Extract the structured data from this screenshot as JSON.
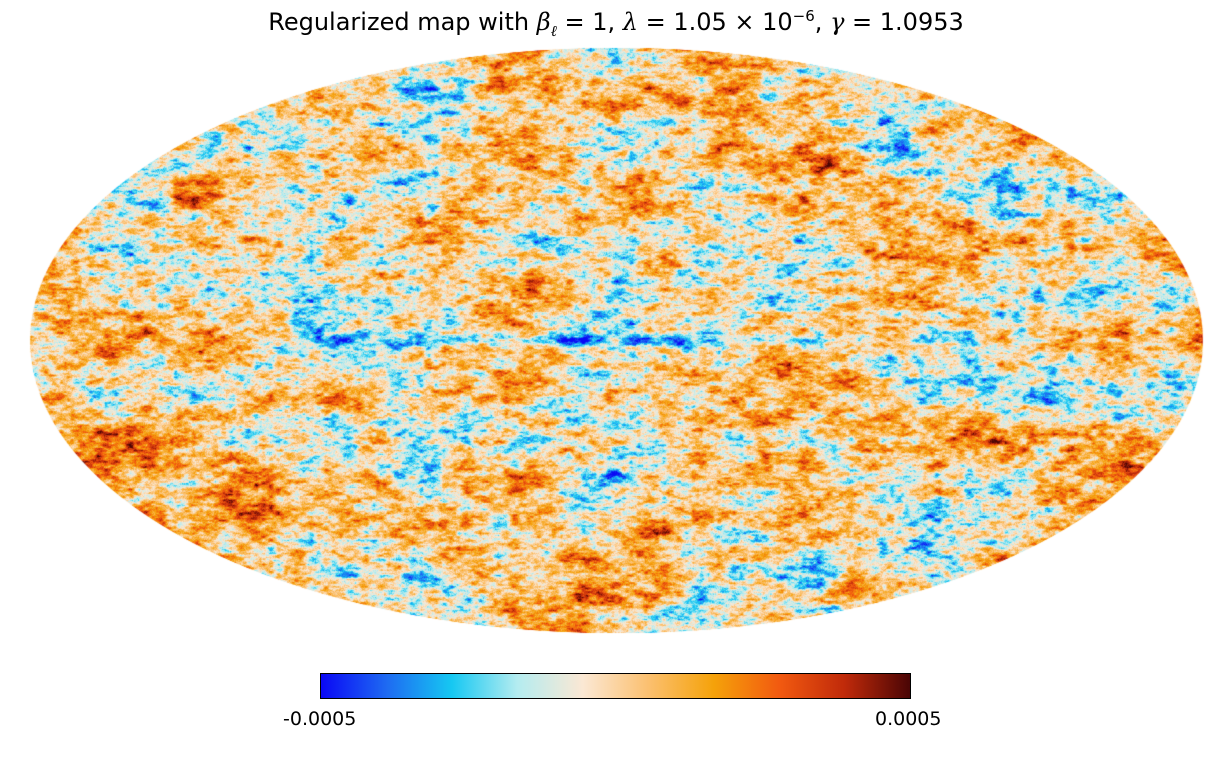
{
  "title": {
    "prefix": "Regularized map with ",
    "beta_symbol": "β",
    "beta_subscript": "ℓ",
    "beta_value": " = 1, ",
    "lambda_symbol": "λ",
    "lambda_value": " = 1.05 × 10",
    "lambda_exponent": "−6",
    "separator": ", ",
    "gamma_symbol": "γ",
    "gamma_value": " = 1.0953"
  },
  "map": {
    "projection": "mollweide",
    "description_colors": {
      "cold": "#0a1cf5",
      "cool": "#12b6f0",
      "neutral": "#fbe6c8",
      "warm": "#f4a11c",
      "hot": "#5a0a05"
    }
  },
  "colorbar": {
    "min_label": "-0.0005",
    "max_label": "0.0005",
    "min_value": -0.0005,
    "max_value": 0.0005,
    "stops": [
      "#0a08f5",
      "#1e6af2",
      "#16c8f2",
      "#b4ecf0",
      "#fbe8d4",
      "#fbc070",
      "#f5a20a",
      "#f25a10",
      "#c02a0a",
      "#4a0505"
    ]
  }
}
